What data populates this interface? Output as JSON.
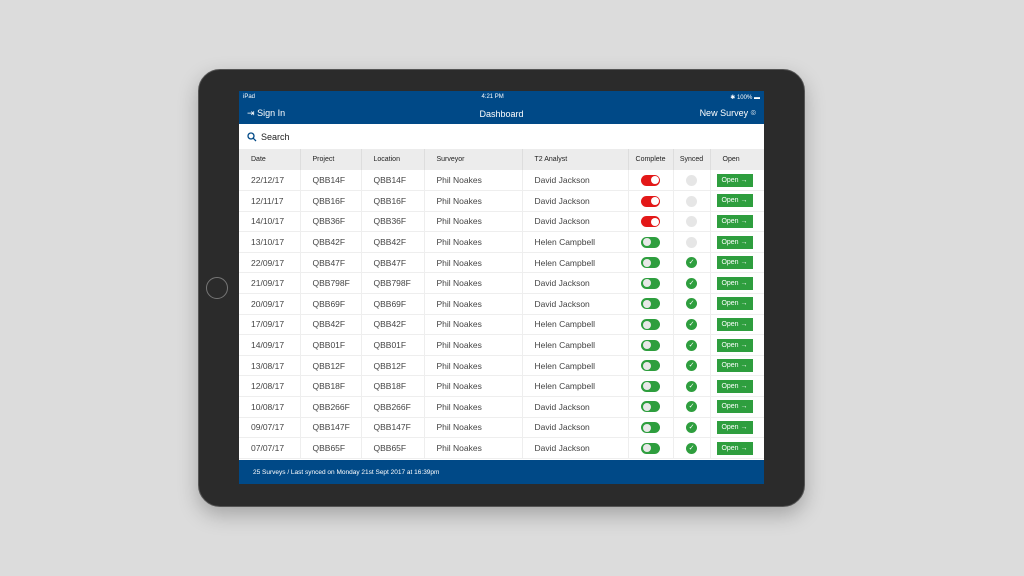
{
  "status": {
    "device": "iPad",
    "time": "4:21 PM",
    "battery": "100%"
  },
  "nav": {
    "sign_in": "Sign In",
    "title": "Dashboard",
    "new_survey": "New Survey"
  },
  "search": {
    "placeholder": "Search"
  },
  "columns": [
    "Date",
    "Project",
    "Location",
    "Surveyor",
    "T2 Analyst",
    "Complete",
    "Synced",
    "Open"
  ],
  "rows": [
    {
      "date": "22/12/17",
      "project": "QBB14F",
      "location": "QBB14F",
      "surveyor": "Phil Noakes",
      "analyst": "David Jackson",
      "complete": false,
      "synced": false
    },
    {
      "date": "12/11/17",
      "project": "QBB16F",
      "location": "QBB16F",
      "surveyor": "Phil Noakes",
      "analyst": "David Jackson",
      "complete": false,
      "synced": false
    },
    {
      "date": "14/10/17",
      "project": "QBB36F",
      "location": "QBB36F",
      "surveyor": "Phil Noakes",
      "analyst": "David Jackson",
      "complete": false,
      "synced": false
    },
    {
      "date": "13/10/17",
      "project": "QBB42F",
      "location": "QBB42F",
      "surveyor": "Phil Noakes",
      "analyst": "Helen Campbell",
      "complete": true,
      "synced": false
    },
    {
      "date": "22/09/17",
      "project": "QBB47F",
      "location": "QBB47F",
      "surveyor": "Phil Noakes",
      "analyst": "Helen Campbell",
      "complete": true,
      "synced": true
    },
    {
      "date": "21/09/17",
      "project": "QBB798F",
      "location": "QBB798F",
      "surveyor": "Phil Noakes",
      "analyst": "David Jackson",
      "complete": true,
      "synced": true
    },
    {
      "date": "20/09/17",
      "project": "QBB69F",
      "location": "QBB69F",
      "surveyor": "Phil Noakes",
      "analyst": "David Jackson",
      "complete": true,
      "synced": true
    },
    {
      "date": "17/09/17",
      "project": "QBB42F",
      "location": "QBB42F",
      "surveyor": "Phil Noakes",
      "analyst": "Helen Campbell",
      "complete": true,
      "synced": true
    },
    {
      "date": "14/09/17",
      "project": "QBB01F",
      "location": "QBB01F",
      "surveyor": "Phil Noakes",
      "analyst": "Helen Campbell",
      "complete": true,
      "synced": true
    },
    {
      "date": "13/08/17",
      "project": "QBB12F",
      "location": "QBB12F",
      "surveyor": "Phil Noakes",
      "analyst": "Helen Campbell",
      "complete": true,
      "synced": true
    },
    {
      "date": "12/08/17",
      "project": "QBB18F",
      "location": "QBB18F",
      "surveyor": "Phil Noakes",
      "analyst": "Helen Campbell",
      "complete": true,
      "synced": true
    },
    {
      "date": "10/08/17",
      "project": "QBB266F",
      "location": "QBB266F",
      "surveyor": "Phil Noakes",
      "analyst": "David Jackson",
      "complete": true,
      "synced": true
    },
    {
      "date": "09/07/17",
      "project": "QBB147F",
      "location": "QBB147F",
      "surveyor": "Phil Noakes",
      "analyst": "David Jackson",
      "complete": true,
      "synced": true
    },
    {
      "date": "07/07/17",
      "project": "QBB65F",
      "location": "QBB65F",
      "surveyor": "Phil Noakes",
      "analyst": "David Jackson",
      "complete": true,
      "synced": true
    }
  ],
  "open_label": "Open →",
  "footer": "25 Surveys / Last synced on Monday 21st Sept 2017 at 16:39pm",
  "colors": {
    "brand": "#004987",
    "green": "#2e9e3e",
    "red": "#e31818"
  }
}
